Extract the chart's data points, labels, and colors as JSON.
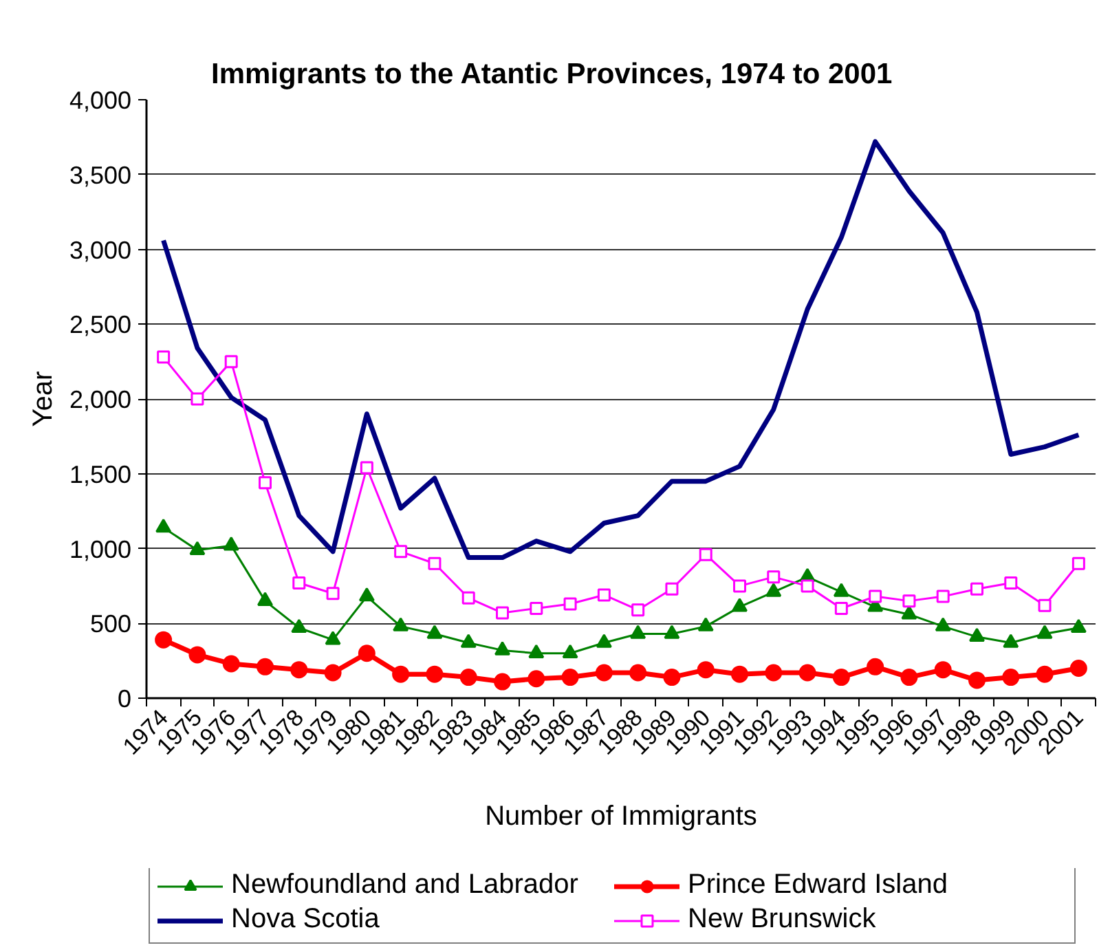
{
  "chart_data": {
    "type": "line",
    "title": "Immigrants to the Atantic Provinces, 1974 to 2001",
    "xlabel": "Number of Immigrants",
    "ylabel": "Year",
    "categories": [
      "1974",
      "1975",
      "1976",
      "1977",
      "1978",
      "1979",
      "1980",
      "1981",
      "1982",
      "1983",
      "1984",
      "1985",
      "1986",
      "1987",
      "1988",
      "1989",
      "1990",
      "1991",
      "1992",
      "1993",
      "1994",
      "1995",
      "1996",
      "1997",
      "1998",
      "1999",
      "2000",
      "2001"
    ],
    "series": [
      {
        "name": "Newfoundland and Labrador",
        "color": "#008000",
        "marker": "triangle",
        "values": [
          1140,
          990,
          1020,
          650,
          470,
          390,
          680,
          480,
          430,
          370,
          320,
          300,
          300,
          370,
          430,
          430,
          480,
          610,
          710,
          810,
          710,
          610,
          560,
          480,
          410,
          370,
          430,
          470
        ]
      },
      {
        "name": "Prince Edward Island",
        "color": "#ff0000",
        "marker": "circle",
        "values": [
          390,
          290,
          230,
          210,
          190,
          170,
          300,
          160,
          160,
          140,
          110,
          130,
          140,
          170,
          170,
          140,
          190,
          160,
          170,
          170,
          140,
          210,
          140,
          190,
          120,
          140,
          160,
          200
        ]
      },
      {
        "name": "Nova Scotia",
        "color": "#000080",
        "marker": "none",
        "values": [
          3060,
          2340,
          2010,
          1860,
          1220,
          980,
          1900,
          1270,
          1470,
          940,
          940,
          1050,
          980,
          1170,
          1220,
          1450,
          1450,
          1550,
          1930,
          2600,
          3080,
          3720,
          3390,
          3110,
          2580,
          1630,
          1680,
          1760
        ]
      },
      {
        "name": "New Brunswick",
        "color": "#ff00ff",
        "marker": "square",
        "values": [
          2280,
          2000,
          2250,
          1440,
          770,
          700,
          1540,
          980,
          900,
          670,
          570,
          600,
          630,
          690,
          590,
          730,
          960,
          750,
          810,
          750,
          600,
          680,
          650,
          680,
          730,
          770,
          620,
          900
        ]
      }
    ],
    "ylim": [
      0,
      4000
    ],
    "yticks": [
      0,
      500,
      {
        "value": 1000,
        "label": "1,000"
      },
      {
        "value": 1500,
        "label": "1,500"
      },
      {
        "value": 2000,
        "label": "2,000"
      },
      {
        "value": 2500,
        "label": "2,500"
      },
      {
        "value": 3000,
        "label": "3,000"
      },
      {
        "value": 3500,
        "label": "3,500"
      },
      {
        "value": 4000,
        "label": "4,000"
      }
    ],
    "grid": "y",
    "legend": "bottom"
  }
}
